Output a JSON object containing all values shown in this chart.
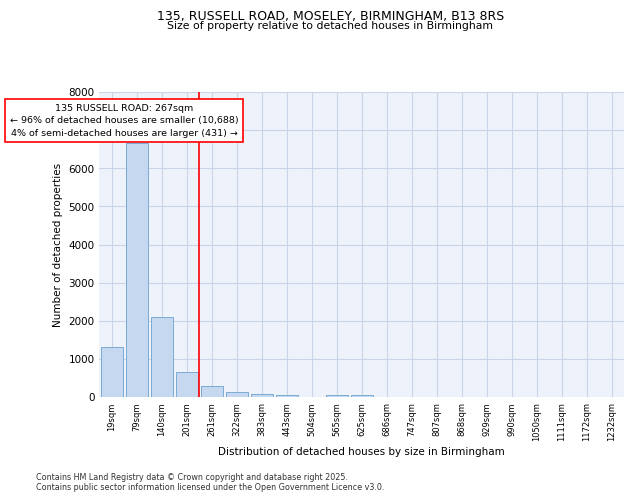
{
  "title1": "135, RUSSELL ROAD, MOSELEY, BIRMINGHAM, B13 8RS",
  "title2": "Size of property relative to detached houses in Birmingham",
  "xlabel": "Distribution of detached houses by size in Birmingham",
  "ylabel": "Number of detached properties",
  "bar_labels": [
    "19sqm",
    "79sqm",
    "140sqm",
    "201sqm",
    "261sqm",
    "322sqm",
    "383sqm",
    "443sqm",
    "504sqm",
    "565sqm",
    "625sqm",
    "686sqm",
    "747sqm",
    "807sqm",
    "868sqm",
    "929sqm",
    "990sqm",
    "1050sqm",
    "1111sqm",
    "1172sqm",
    "1232sqm"
  ],
  "bar_values": [
    1300,
    6650,
    2100,
    650,
    300,
    130,
    90,
    55,
    0,
    55,
    55,
    0,
    0,
    0,
    0,
    0,
    0,
    0,
    0,
    0,
    0
  ],
  "bar_color": "#c5d8f0",
  "bar_edge_color": "#7aaad4",
  "grid_color": "#c8d4e8",
  "background_color": "#eef2fa",
  "vline_x": 3.5,
  "vline_color": "red",
  "annotation_title": "135 RUSSELL ROAD: 267sqm",
  "annotation_line1": "← 96% of detached houses are smaller (10,688)",
  "annotation_line2": "4% of semi-detached houses are larger (431) →",
  "annotation_box_color": "white",
  "annotation_box_edge": "red",
  "ylim": [
    0,
    8000
  ],
  "yticks": [
    0,
    1000,
    2000,
    3000,
    4000,
    5000,
    6000,
    7000,
    8000
  ],
  "footer1": "Contains HM Land Registry data © Crown copyright and database right 2025.",
  "footer2": "Contains public sector information licensed under the Open Government Licence v3.0."
}
